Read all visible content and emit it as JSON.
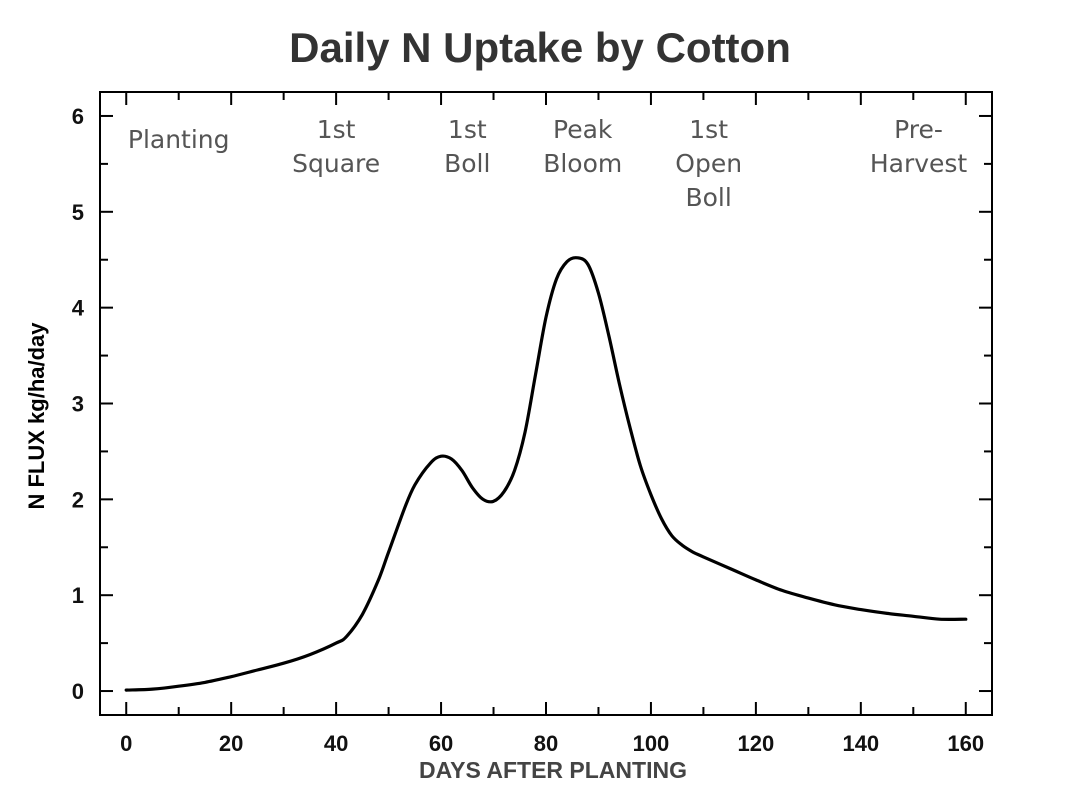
{
  "chart_data": {
    "type": "line",
    "title": "Daily N Uptake by Cotton",
    "xlabel": "DAYS AFTER PLANTING",
    "ylabel": "N FLUX  kg/ha/day",
    "xlim": [
      -5,
      165
    ],
    "ylim": [
      -0.25,
      6.25
    ],
    "x_ticks": [
      0,
      20,
      40,
      60,
      80,
      100,
      120,
      140,
      160
    ],
    "y_ticks": [
      0,
      1,
      2,
      3,
      4,
      5,
      6
    ],
    "grid": false,
    "series": [
      {
        "x": [
          0,
          5,
          10,
          15,
          20,
          25,
          30,
          35,
          40,
          42,
          45,
          48,
          50,
          53,
          55,
          58,
          60,
          62,
          64,
          66,
          68,
          70,
          72,
          74,
          76,
          78,
          80,
          82,
          84,
          86,
          88,
          90,
          92,
          94,
          96,
          98,
          100,
          102,
          104,
          106,
          108,
          110,
          115,
          120,
          125,
          130,
          135,
          140,
          145,
          150,
          155,
          160
        ],
        "y": [
          0.01,
          0.02,
          0.05,
          0.09,
          0.15,
          0.22,
          0.29,
          0.38,
          0.5,
          0.57,
          0.8,
          1.15,
          1.45,
          1.9,
          2.15,
          2.38,
          2.45,
          2.42,
          2.3,
          2.12,
          2.0,
          1.98,
          2.08,
          2.3,
          2.7,
          3.3,
          3.9,
          4.3,
          4.48,
          4.52,
          4.45,
          4.15,
          3.7,
          3.2,
          2.75,
          2.35,
          2.05,
          1.8,
          1.62,
          1.52,
          1.45,
          1.4,
          1.28,
          1.16,
          1.05,
          0.97,
          0.9,
          0.85,
          0.81,
          0.78,
          0.75,
          0.75
        ]
      }
    ],
    "annotations": [
      {
        "lines": [
          "Planting"
        ],
        "x": 10
      },
      {
        "lines": [
          "1st",
          "Square"
        ],
        "x": 40
      },
      {
        "lines": [
          "1st",
          "Boll"
        ],
        "x": 65
      },
      {
        "lines": [
          "Peak",
          "Bloom"
        ],
        "x": 87
      },
      {
        "lines": [
          "1st",
          "Open",
          "Boll"
        ],
        "x": 111
      },
      {
        "lines": [
          "Pre-",
          "Harvest"
        ],
        "x": 151
      }
    ]
  }
}
